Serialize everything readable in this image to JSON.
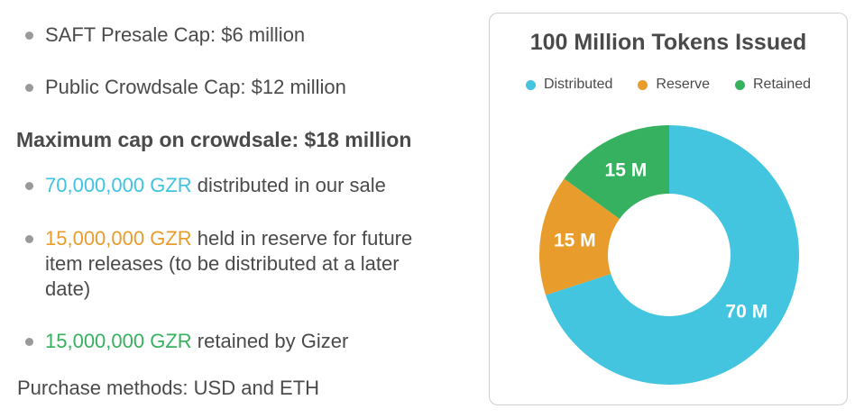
{
  "bullets_top": [
    {
      "text": "SAFT Presale Cap: $6 million"
    },
    {
      "text": "Public Crowdsale Cap: $12 million"
    }
  ],
  "heading": "Maximum cap on crowdsale: $18 million",
  "bullets_bottom": [
    {
      "highlight": "70,000,000 GZR",
      "rest": " distributed in our sale",
      "color": "#3ec3e0"
    },
    {
      "highlight": "15,000,000 GZR",
      "rest": " held in reserve for future",
      "rest2": "item releases (to be distributed at a later",
      "rest3": "date)",
      "color": "#e89c2b"
    },
    {
      "highlight": "15,000,000 GZR",
      "rest": " retained by Gizer",
      "color": "#36b15f"
    }
  ],
  "purchase": "Purchase methods: USD and ETH",
  "chart_data": {
    "type": "pie",
    "title": "100 Million Tokens Issued",
    "legend_placement": "top",
    "categories": [
      "Distributed",
      "Reserve",
      "Retained"
    ],
    "values": [
      70,
      15,
      15
    ],
    "data_labels": [
      "70 M",
      "15 M",
      "15 M"
    ],
    "colors": [
      "#43c4df",
      "#e89c2b",
      "#36b15f"
    ],
    "donut": true
  }
}
